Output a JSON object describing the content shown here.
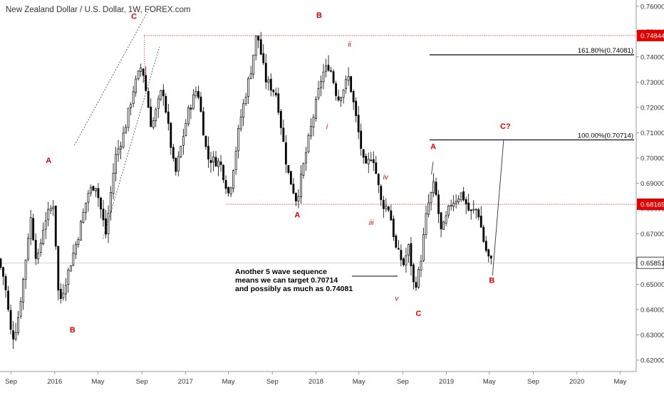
{
  "chart_data": {
    "type": "candlestick",
    "title": "New Zealand Dollar / U.S. Dollar, 1W, FOREX.com",
    "y_ticks": [
      0.76,
      0.75,
      0.74,
      0.73,
      0.72,
      0.71,
      0.7,
      0.69,
      0.68,
      0.67,
      0.66,
      0.65,
      0.64,
      0.63,
      0.62
    ],
    "y_tick_labels": [
      "0.76000",
      "0.75000",
      "0.74000",
      "0.73000",
      "0.72000",
      "0.71000",
      "0.70000",
      "0.69000",
      "0.68000",
      "0.67000",
      "0.66000",
      "0.65000",
      "0.64000",
      "0.63000",
      "0.62000"
    ],
    "ylim": [
      0.6155,
      0.7625
    ],
    "x_range": [
      "2015-08-01",
      "2020-06-15"
    ],
    "x_ticks": [
      {
        "label": "Sep",
        "date": "2015-09-01"
      },
      {
        "label": "2016",
        "date": "2016-01-01"
      },
      {
        "label": "May",
        "date": "2016-05-01"
      },
      {
        "label": "Sep",
        "date": "2016-09-01"
      },
      {
        "label": "2017",
        "date": "2017-01-01"
      },
      {
        "label": "May",
        "date": "2017-05-01"
      },
      {
        "label": "Sep",
        "date": "2017-09-01"
      },
      {
        "label": "2018",
        "date": "2018-01-01"
      },
      {
        "label": "May",
        "date": "2018-05-01"
      },
      {
        "label": "Sep",
        "date": "2018-09-01"
      },
      {
        "label": "2019",
        "date": "2019-01-01"
      },
      {
        "label": "May",
        "date": "2019-05-01"
      },
      {
        "label": "Sep",
        "date": "2019-09-01"
      },
      {
        "label": "2020",
        "date": "2020-01-01"
      },
      {
        "label": "May",
        "date": "2020-05-01"
      }
    ],
    "price_path": [
      {
        "date": "2015-08-03",
        "price": 0.66
      },
      {
        "date": "2015-08-20",
        "price": 0.652
      },
      {
        "date": "2015-09-10",
        "price": 0.628
      },
      {
        "date": "2015-09-25",
        "price": 0.634
      },
      {
        "date": "2015-10-15",
        "price": 0.655
      },
      {
        "date": "2015-11-01",
        "price": 0.677
      },
      {
        "date": "2015-11-20",
        "price": 0.658
      },
      {
        "date": "2015-12-10",
        "price": 0.675
      },
      {
        "date": "2016-01-05",
        "price": 0.682
      },
      {
        "date": "2016-01-20",
        "price": 0.642
      },
      {
        "date": "2016-02-15",
        "price": 0.655
      },
      {
        "date": "2016-03-15",
        "price": 0.67
      },
      {
        "date": "2016-04-10",
        "price": 0.686
      },
      {
        "date": "2016-05-01",
        "price": 0.69
      },
      {
        "date": "2016-05-30",
        "price": 0.67
      },
      {
        "date": "2016-06-25",
        "price": 0.7
      },
      {
        "date": "2016-07-20",
        "price": 0.71
      },
      {
        "date": "2016-08-15",
        "price": 0.727
      },
      {
        "date": "2016-09-08",
        "price": 0.737
      },
      {
        "date": "2016-10-05",
        "price": 0.712
      },
      {
        "date": "2016-11-05",
        "price": 0.728
      },
      {
        "date": "2016-12-10",
        "price": 0.693
      },
      {
        "date": "2017-01-15",
        "price": 0.718
      },
      {
        "date": "2017-02-10",
        "price": 0.728
      },
      {
        "date": "2017-03-10",
        "price": 0.7
      },
      {
        "date": "2017-04-15",
        "price": 0.698
      },
      {
        "date": "2017-05-10",
        "price": 0.685
      },
      {
        "date": "2017-06-10",
        "price": 0.715
      },
      {
        "date": "2017-07-10",
        "price": 0.735
      },
      {
        "date": "2017-07-27",
        "price": 0.75
      },
      {
        "date": "2017-08-20",
        "price": 0.731
      },
      {
        "date": "2017-09-20",
        "price": 0.725
      },
      {
        "date": "2017-10-20",
        "price": 0.695
      },
      {
        "date": "2017-11-15",
        "price": 0.683
      },
      {
        "date": "2017-12-15",
        "price": 0.705
      },
      {
        "date": "2018-01-25",
        "price": 0.733
      },
      {
        "date": "2018-02-15",
        "price": 0.737
      },
      {
        "date": "2018-03-10",
        "price": 0.723
      },
      {
        "date": "2018-04-10",
        "price": 0.732
      },
      {
        "date": "2018-04-25",
        "price": 0.72
      },
      {
        "date": "2018-05-25",
        "price": 0.695
      },
      {
        "date": "2018-06-15",
        "price": 0.702
      },
      {
        "date": "2018-07-10",
        "price": 0.682
      },
      {
        "date": "2018-08-01",
        "price": 0.68
      },
      {
        "date": "2018-08-20",
        "price": 0.664
      },
      {
        "date": "2018-09-10",
        "price": 0.658
      },
      {
        "date": "2018-09-25",
        "price": 0.665
      },
      {
        "date": "2018-10-10",
        "price": 0.648
      },
      {
        "date": "2018-10-25",
        "price": 0.656
      },
      {
        "date": "2018-11-15",
        "price": 0.68
      },
      {
        "date": "2018-12-05",
        "price": 0.69
      },
      {
        "date": "2018-12-25",
        "price": 0.67
      },
      {
        "date": "2019-01-20",
        "price": 0.682
      },
      {
        "date": "2019-02-20",
        "price": 0.686
      },
      {
        "date": "2019-03-15",
        "price": 0.678
      },
      {
        "date": "2019-04-05",
        "price": 0.68
      },
      {
        "date": "2019-04-25",
        "price": 0.665
      },
      {
        "date": "2019-05-10",
        "price": 0.659
      }
    ],
    "horizontal_levels": [
      {
        "price": 0.74844,
        "label": "0.74844",
        "style": "dotted-red"
      },
      {
        "price": 0.68169,
        "label": "0.68169",
        "style": "dotted-red"
      },
      {
        "price": 0.65851,
        "label": "0.65851",
        "style": "current-price"
      }
    ],
    "fib_levels": [
      {
        "price": 0.74081,
        "label": "161.80%(0.74081)"
      },
      {
        "price": 0.70714,
        "label": "100.00%(0.70714)"
      }
    ],
    "wave_labels": [
      {
        "text": "A",
        "date": "2015-12-15",
        "price": 0.698
      },
      {
        "text": "B",
        "date": "2016-02-20",
        "price": 0.631
      },
      {
        "text": "C",
        "date": "2016-08-10",
        "price": 0.755
      },
      {
        "text": "B",
        "date": "2018-01-10",
        "price": 0.7555
      },
      {
        "text": "A",
        "date": "2017-11-10",
        "price": 0.6765
      },
      {
        "text": "A",
        "date": "2018-11-25",
        "price": 0.7035
      },
      {
        "text": "C",
        "date": "2018-10-15",
        "price": 0.6375
      },
      {
        "text": "B",
        "date": "2019-05-08",
        "price": 0.6505
      },
      {
        "text": "C?",
        "date": "2019-06-15",
        "price": 0.7115
      }
    ],
    "subwave_labels": [
      {
        "text": "i",
        "date": "2018-02-01",
        "price": 0.7115
      },
      {
        "text": "ii",
        "date": "2018-04-05",
        "price": 0.744
      },
      {
        "text": "iii",
        "date": "2018-06-05",
        "price": 0.6735
      },
      {
        "text": "iv",
        "date": "2018-07-15",
        "price": 0.6915
      },
      {
        "text": "v",
        "date": "2018-08-15",
        "price": 0.6435
      }
    ],
    "note": "Another 5 wave sequence\nmeans we can target 0.70714\nand possibly as much as 0.74081",
    "last_price_label": "0.65851",
    "grid": false,
    "legend": "none"
  }
}
